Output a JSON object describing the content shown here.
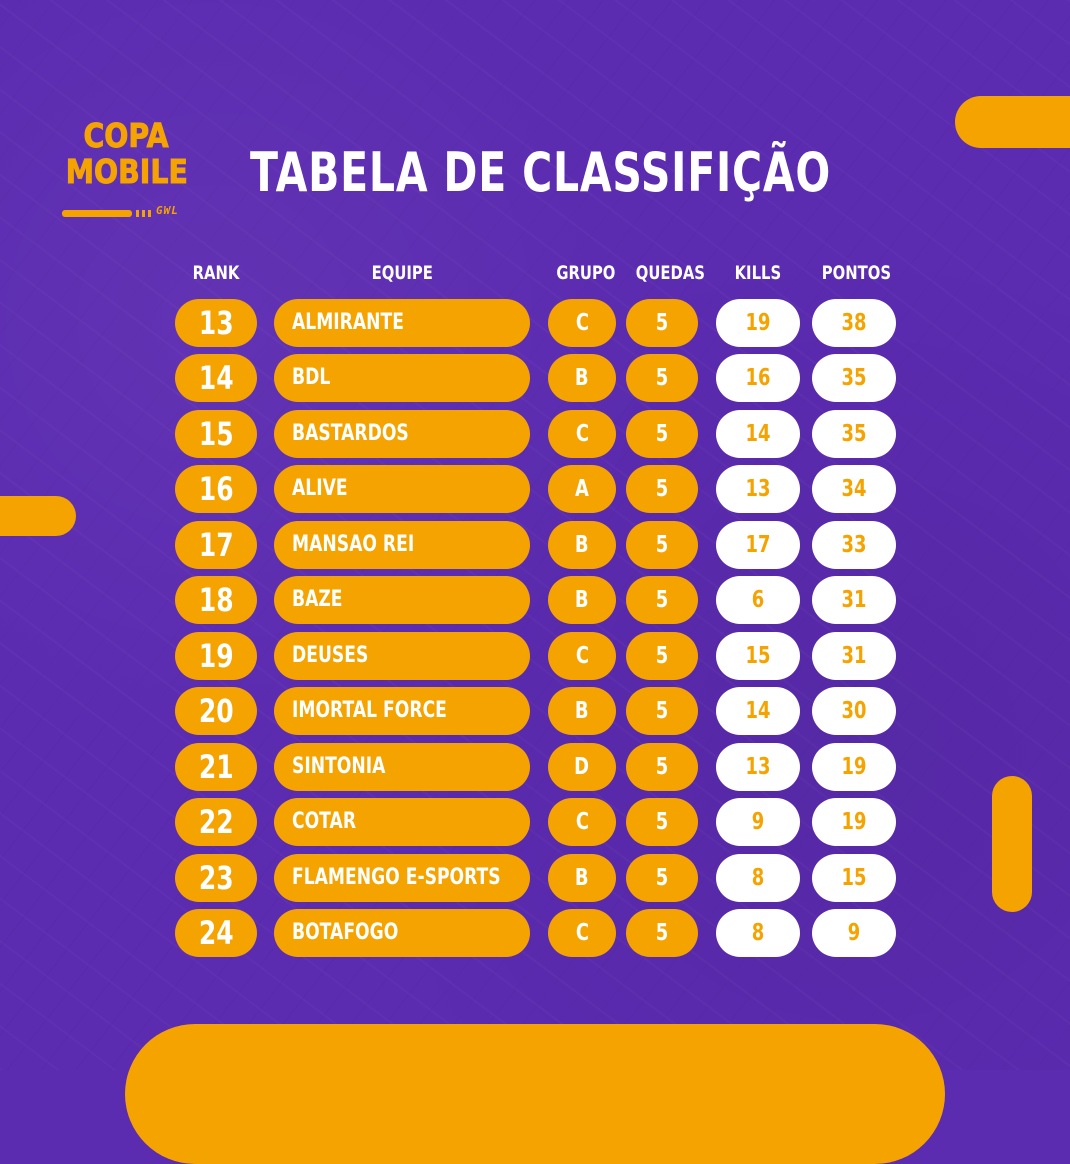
{
  "logo": {
    "line1": "COPA",
    "line2": "MOBILE",
    "sub": "GWL"
  },
  "title": "TABELA DE CLASSIFIÇÃO",
  "headers": {
    "rank": "RANK",
    "team": "EQUIPE",
    "group": "GRUPO",
    "drops": "QUEDAS",
    "kills": "KILLS",
    "points": "PONTOS"
  },
  "rows": [
    {
      "rank": "13",
      "team": "ALMIRANTE",
      "group": "C",
      "drops": "5",
      "kills": "19",
      "points": "38"
    },
    {
      "rank": "14",
      "team": "BDL",
      "group": "B",
      "drops": "5",
      "kills": "16",
      "points": "35"
    },
    {
      "rank": "15",
      "team": "BASTARDOS",
      "group": "C",
      "drops": "5",
      "kills": "14",
      "points": "35"
    },
    {
      "rank": "16",
      "team": "ALIVE",
      "group": "A",
      "drops": "5",
      "kills": "13",
      "points": "34"
    },
    {
      "rank": "17",
      "team": "MANSAO REI",
      "group": "B",
      "drops": "5",
      "kills": "17",
      "points": "33"
    },
    {
      "rank": "18",
      "team": "BAZE",
      "group": "B",
      "drops": "5",
      "kills": "6",
      "points": "31"
    },
    {
      "rank": "19",
      "team": "DEUSES",
      "group": "C",
      "drops": "5",
      "kills": "15",
      "points": "31"
    },
    {
      "rank": "20",
      "team": "IMORTAL FORCE",
      "group": "B",
      "drops": "5",
      "kills": "14",
      "points": "30"
    },
    {
      "rank": "21",
      "team": "SINTONIA",
      "group": "D",
      "drops": "5",
      "kills": "13",
      "points": "19"
    },
    {
      "rank": "22",
      "team": "COTAR",
      "group": "C",
      "drops": "5",
      "kills": "9",
      "points": "19"
    },
    {
      "rank": "23",
      "team": "FLAMENGO E-SPORTS",
      "group": "B",
      "drops": "5",
      "kills": "8",
      "points": "15"
    },
    {
      "rank": "24",
      "team": "BOTAFOGO",
      "group": "C",
      "drops": "5",
      "kills": "8",
      "points": "9"
    }
  ],
  "colors": {
    "background": "#5b2bb0",
    "accent": "#f5a300",
    "white": "#ffffff"
  }
}
